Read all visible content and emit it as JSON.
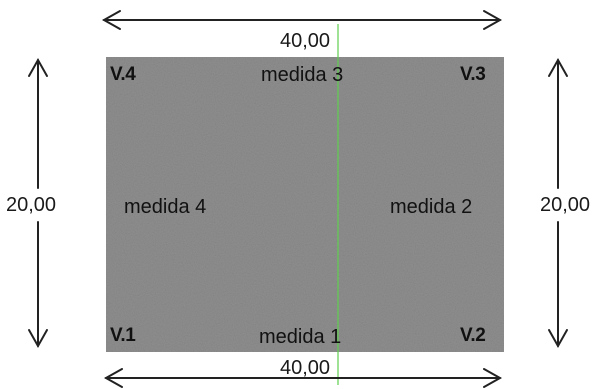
{
  "colors": {
    "field": "#8f8f8f",
    "field_dark": "#7b7b7b",
    "center_line": "#5fcf4f",
    "arrow": "#222222",
    "text": "#1a1a1a"
  },
  "dimensions": {
    "top": "40,00",
    "bottom": "40,00",
    "left": "20,00",
    "right": "20,00"
  },
  "vertices": {
    "v1": "V.1",
    "v2": "V.2",
    "v3": "V.3",
    "v4": "V.4"
  },
  "measures": {
    "m1": "medida 1",
    "m2": "medida 2",
    "m3": "medida 3",
    "m4": "medida 4"
  }
}
